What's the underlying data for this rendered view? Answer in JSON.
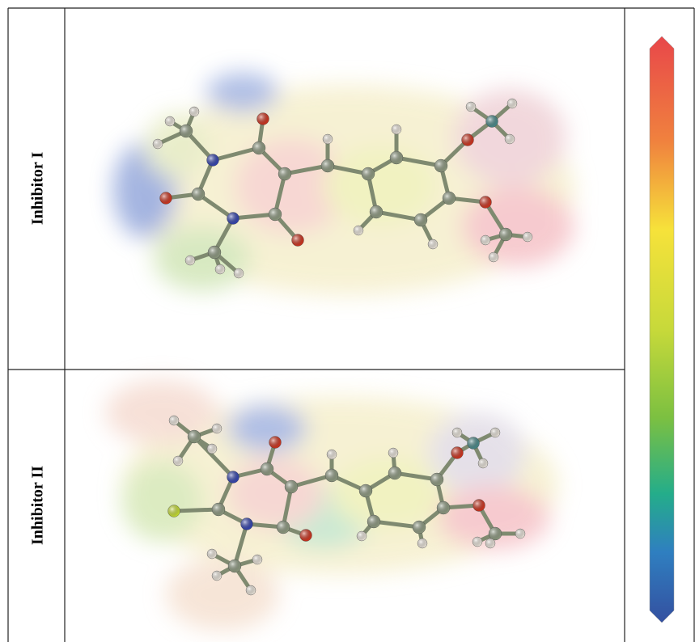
{
  "rows": [
    {
      "label": "Inhibitor I"
    },
    {
      "label": "Inhibitor II"
    }
  ]
}
